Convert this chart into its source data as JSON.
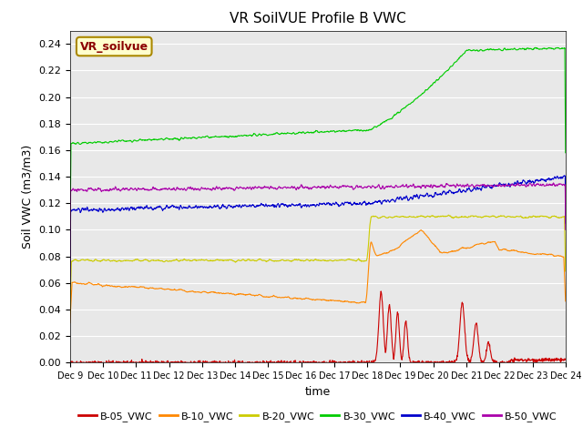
{
  "title": "VR SoilVUE Profile B VWC",
  "xlabel": "time",
  "ylabel": "Soil VWC (m3/m3)",
  "ylim": [
    0,
    0.25
  ],
  "background_color": "#e8e8e8",
  "legend_box_label": "VR_soilvue",
  "colors": {
    "B-05_VWC": "#cc0000",
    "B-10_VWC": "#ff8800",
    "B-20_VWC": "#cccc00",
    "B-30_VWC": "#00cc00",
    "B-40_VWC": "#0000cc",
    "B-50_VWC": "#aa00aa"
  },
  "xtick_labels": [
    "Dec 9",
    "Dec 10",
    "Dec 11",
    "Dec 12",
    "Dec 13",
    "Dec 14",
    "Dec 15",
    "Dec 16",
    "Dec 17",
    "Dec 18",
    "Dec 19",
    "Dec 20",
    "Dec 21",
    "Dec 22",
    "Dec 23",
    "Dec 24"
  ],
  "ytick_vals": [
    0.0,
    0.02,
    0.04,
    0.06,
    0.08,
    0.1,
    0.12,
    0.14,
    0.16,
    0.18,
    0.2,
    0.22,
    0.24
  ]
}
